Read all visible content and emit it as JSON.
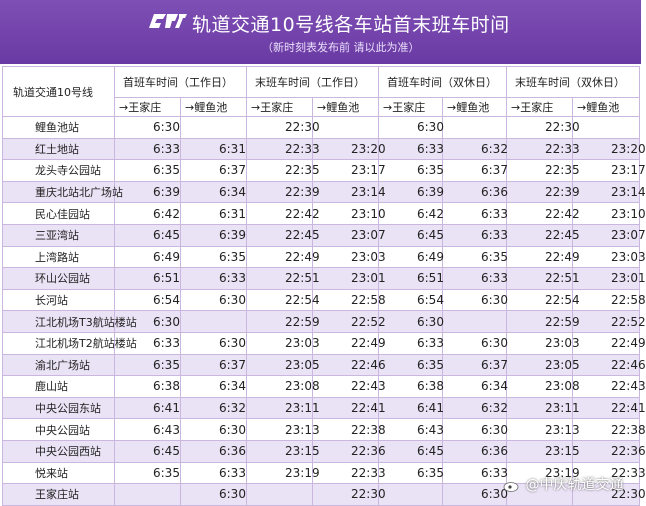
{
  "header": {
    "logo_text": "CRT",
    "title": "轨道交通10号线各车站首末班车时间",
    "subtitle": "（新时刻表发布前 请以此为准）"
  },
  "table": {
    "corner_label": "轨道交通10号线",
    "group_headers": [
      "首班车时间（工作日）",
      "末班车时间（工作日）",
      "首班车时间（双休日）",
      "末班车时间（双休日）"
    ],
    "direction_headers": [
      "→王家庄",
      "→鲤鱼池",
      "→王家庄",
      "→鲤鱼池",
      "→王家庄",
      "→鲤鱼池",
      "→王家庄",
      "→鲤鱼池"
    ],
    "rows": [
      {
        "station": "鲤鱼池站",
        "times": [
          "6:30",
          "",
          "22:30",
          "",
          "6:30",
          "",
          "22:30",
          ""
        ]
      },
      {
        "station": "红土地站",
        "times": [
          "6:33",
          "6:31",
          "22:33",
          "23:20",
          "6:33",
          "6:32",
          "22:33",
          "23:20"
        ]
      },
      {
        "station": "龙头寺公园站",
        "times": [
          "6:35",
          "6:37",
          "22:35",
          "23:17",
          "6:35",
          "6:37",
          "22:35",
          "23:17"
        ]
      },
      {
        "station": "重庆北站北广场站",
        "times": [
          "6:39",
          "6:34",
          "22:39",
          "23:14",
          "6:39",
          "6:36",
          "22:39",
          "23:14"
        ]
      },
      {
        "station": "民心佳园站",
        "times": [
          "6:42",
          "6:31",
          "22:42",
          "23:10",
          "6:42",
          "6:33",
          "22:42",
          "23:10"
        ]
      },
      {
        "station": "三亚湾站",
        "times": [
          "6:45",
          "6:39",
          "22:45",
          "23:07",
          "6:45",
          "6:33",
          "22:45",
          "23:07"
        ]
      },
      {
        "station": "上湾路站",
        "times": [
          "6:49",
          "6:35",
          "22:49",
          "23:03",
          "6:49",
          "6:35",
          "22:49",
          "23:03"
        ]
      },
      {
        "station": "环山公园站",
        "times": [
          "6:51",
          "6:33",
          "22:51",
          "23:01",
          "6:51",
          "6:33",
          "22:51",
          "23:01"
        ]
      },
      {
        "station": "长河站",
        "times": [
          "6:54",
          "6:30",
          "22:54",
          "22:58",
          "6:54",
          "6:30",
          "22:54",
          "22:58"
        ]
      },
      {
        "station": "江北机场T3航站楼站",
        "times": [
          "6:30",
          "",
          "22:59",
          "22:52",
          "6:30",
          "",
          "22:59",
          "22:52"
        ]
      },
      {
        "station": "江北机场T2航站楼站",
        "times": [
          "6:33",
          "6:30",
          "23:03",
          "22:49",
          "6:33",
          "6:30",
          "23:03",
          "22:49"
        ]
      },
      {
        "station": "渝北广场站",
        "times": [
          "6:35",
          "6:37",
          "23:05",
          "22:46",
          "6:35",
          "6:37",
          "23:05",
          "22:46"
        ]
      },
      {
        "station": "鹿山站",
        "times": [
          "6:38",
          "6:34",
          "23:08",
          "22:43",
          "6:38",
          "6:34",
          "23:08",
          "22:43"
        ]
      },
      {
        "station": "中央公园东站",
        "times": [
          "6:41",
          "6:32",
          "23:11",
          "22:41",
          "6:41",
          "6:32",
          "23:11",
          "22:41"
        ]
      },
      {
        "station": "中央公园站",
        "times": [
          "6:43",
          "6:30",
          "23:13",
          "22:38",
          "6:43",
          "6:30",
          "23:13",
          "22:38"
        ]
      },
      {
        "station": "中央公园西站",
        "times": [
          "6:45",
          "6:36",
          "23:15",
          "22:36",
          "6:45",
          "6:36",
          "23:15",
          "22:36"
        ]
      },
      {
        "station": "悦来站",
        "times": [
          "6:35",
          "6:33",
          "23:19",
          "22:33",
          "6:35",
          "6:33",
          "23:19",
          "22:33"
        ]
      },
      {
        "station": "王家庄站",
        "times": [
          "",
          "6:30",
          "",
          "22:30",
          "",
          "6:30",
          "",
          "22:30"
        ]
      }
    ]
  },
  "watermark": {
    "text": "@中庆轨道交通"
  },
  "colors": {
    "banner": "#6a3aa4",
    "row_alt": "#eae2f5",
    "border": "#c9b7e0"
  }
}
